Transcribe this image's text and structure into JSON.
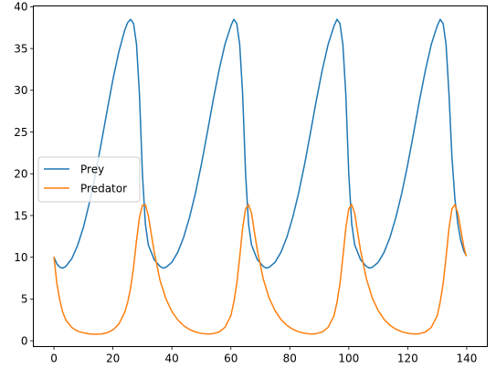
{
  "chart_data": {
    "type": "line",
    "title": "",
    "xlabel": "",
    "ylabel": "",
    "xlim": [
      -7,
      147
    ],
    "ylim": [
      -0.7,
      40.1
    ],
    "xticks": [
      0,
      20,
      40,
      60,
      80,
      100,
      120,
      140
    ],
    "yticks": [
      0,
      5,
      10,
      15,
      20,
      25,
      30,
      35,
      40
    ],
    "grid": false,
    "legend": {
      "position": "center-left",
      "entries": [
        "Prey",
        "Predator"
      ]
    },
    "series": [
      {
        "name": "Prey",
        "color": "#1f77b4",
        "points": [
          [
            0,
            10.0
          ],
          [
            1,
            9.2
          ],
          [
            2,
            8.8
          ],
          [
            3,
            8.7
          ],
          [
            4,
            8.9
          ],
          [
            6,
            9.8
          ],
          [
            8,
            11.4
          ],
          [
            10,
            13.6
          ],
          [
            12,
            16.5
          ],
          [
            14,
            19.8
          ],
          [
            16,
            23.6
          ],
          [
            18,
            27.5
          ],
          [
            20,
            31.3
          ],
          [
            22,
            34.6
          ],
          [
            24,
            37.2
          ],
          [
            25,
            38.1
          ],
          [
            26,
            38.5
          ],
          [
            27,
            38.0
          ],
          [
            28,
            35.5
          ],
          [
            29,
            29.5
          ],
          [
            30,
            20.0
          ],
          [
            31,
            14.0
          ],
          [
            32,
            11.5
          ],
          [
            34,
            9.7
          ],
          [
            36,
            8.9
          ],
          [
            37,
            8.7
          ],
          [
            38,
            8.8
          ],
          [
            40,
            9.4
          ],
          [
            42,
            10.6
          ],
          [
            44,
            12.4
          ],
          [
            46,
            14.8
          ],
          [
            48,
            17.7
          ],
          [
            50,
            21.1
          ],
          [
            52,
            24.9
          ],
          [
            54,
            28.8
          ],
          [
            56,
            32.4
          ],
          [
            58,
            35.5
          ],
          [
            60,
            37.7
          ],
          [
            61,
            38.5
          ],
          [
            62,
            38.0
          ],
          [
            63,
            35.5
          ],
          [
            64,
            29.5
          ],
          [
            65,
            20.0
          ],
          [
            66,
            14.0
          ],
          [
            67,
            11.5
          ],
          [
            69,
            9.7
          ],
          [
            71,
            8.9
          ],
          [
            72,
            8.7
          ],
          [
            73,
            8.8
          ],
          [
            75,
            9.4
          ],
          [
            77,
            10.6
          ],
          [
            79,
            12.4
          ],
          [
            81,
            14.8
          ],
          [
            83,
            17.7
          ],
          [
            85,
            21.1
          ],
          [
            87,
            24.9
          ],
          [
            89,
            28.8
          ],
          [
            91,
            32.4
          ],
          [
            93,
            35.5
          ],
          [
            95,
            37.7
          ],
          [
            96,
            38.5
          ],
          [
            97,
            38.0
          ],
          [
            98,
            35.5
          ],
          [
            99,
            29.5
          ],
          [
            100,
            20.0
          ],
          [
            101,
            14.0
          ],
          [
            102,
            11.5
          ],
          [
            104,
            9.7
          ],
          [
            106,
            8.9
          ],
          [
            107,
            8.7
          ],
          [
            108,
            8.8
          ],
          [
            110,
            9.4
          ],
          [
            112,
            10.6
          ],
          [
            114,
            12.4
          ],
          [
            116,
            14.8
          ],
          [
            118,
            17.7
          ],
          [
            120,
            21.1
          ],
          [
            122,
            24.9
          ],
          [
            124,
            28.8
          ],
          [
            126,
            32.4
          ],
          [
            128,
            35.5
          ],
          [
            130,
            37.7
          ],
          [
            131,
            38.5
          ],
          [
            132,
            38.0
          ],
          [
            133,
            35.5
          ],
          [
            134,
            29.5
          ],
          [
            135,
            22.0
          ],
          [
            136,
            17.0
          ],
          [
            137,
            14.0
          ],
          [
            138,
            12.0
          ],
          [
            139,
            10.8
          ],
          [
            139.8,
            10.2
          ]
        ]
      },
      {
        "name": "Predator",
        "color": "#ff7f0e",
        "points": [
          [
            0,
            10.0
          ],
          [
            1,
            6.8
          ],
          [
            2,
            4.8
          ],
          [
            3,
            3.4
          ],
          [
            4,
            2.5
          ],
          [
            6,
            1.6
          ],
          [
            8,
            1.15
          ],
          [
            10,
            0.95
          ],
          [
            12,
            0.82
          ],
          [
            14,
            0.78
          ],
          [
            16,
            0.8
          ],
          [
            18,
            0.95
          ],
          [
            20,
            1.3
          ],
          [
            22,
            2.0
          ],
          [
            24,
            3.4
          ],
          [
            25,
            4.6
          ],
          [
            26,
            6.3
          ],
          [
            27,
            8.8
          ],
          [
            28,
            12.0
          ],
          [
            29,
            14.8
          ],
          [
            30,
            16.2
          ],
          [
            31,
            16.3
          ],
          [
            32,
            15.0
          ],
          [
            33,
            12.8
          ],
          [
            34,
            10.6
          ],
          [
            36,
            7.2
          ],
          [
            38,
            5.0
          ],
          [
            40,
            3.5
          ],
          [
            42,
            2.5
          ],
          [
            44,
            1.8
          ],
          [
            46,
            1.35
          ],
          [
            48,
            1.05
          ],
          [
            50,
            0.88
          ],
          [
            52,
            0.8
          ],
          [
            54,
            0.85
          ],
          [
            56,
            1.05
          ],
          [
            58,
            1.6
          ],
          [
            60,
            3.0
          ],
          [
            61,
            4.6
          ],
          [
            62,
            6.8
          ],
          [
            63,
            10.0
          ],
          [
            64,
            13.5
          ],
          [
            65,
            15.8
          ],
          [
            66,
            16.3
          ],
          [
            67,
            15.3
          ],
          [
            68,
            13.0
          ],
          [
            69,
            10.8
          ],
          [
            71,
            7.4
          ],
          [
            73,
            5.1
          ],
          [
            75,
            3.6
          ],
          [
            77,
            2.55
          ],
          [
            79,
            1.85
          ],
          [
            81,
            1.38
          ],
          [
            83,
            1.07
          ],
          [
            85,
            0.9
          ],
          [
            87,
            0.8
          ],
          [
            89,
            0.85
          ],
          [
            91,
            1.05
          ],
          [
            93,
            1.6
          ],
          [
            95,
            3.0
          ],
          [
            96,
            4.6
          ],
          [
            97,
            6.8
          ],
          [
            98,
            10.0
          ],
          [
            99,
            13.5
          ],
          [
            100,
            15.8
          ],
          [
            101,
            16.3
          ],
          [
            102,
            15.3
          ],
          [
            103,
            13.0
          ],
          [
            104,
            10.8
          ],
          [
            106,
            7.4
          ],
          [
            108,
            5.1
          ],
          [
            110,
            3.6
          ],
          [
            112,
            2.55
          ],
          [
            114,
            1.85
          ],
          [
            116,
            1.38
          ],
          [
            118,
            1.07
          ],
          [
            120,
            0.9
          ],
          [
            122,
            0.8
          ],
          [
            124,
            0.85
          ],
          [
            126,
            1.05
          ],
          [
            128,
            1.6
          ],
          [
            130,
            3.0
          ],
          [
            131,
            4.6
          ],
          [
            132,
            6.8
          ],
          [
            133,
            10.0
          ],
          [
            134,
            13.5
          ],
          [
            135,
            15.8
          ],
          [
            136,
            16.3
          ],
          [
            137,
            15.3
          ],
          [
            138,
            13.3
          ],
          [
            139,
            11.3
          ],
          [
            139.8,
            10.2
          ]
        ]
      }
    ]
  }
}
